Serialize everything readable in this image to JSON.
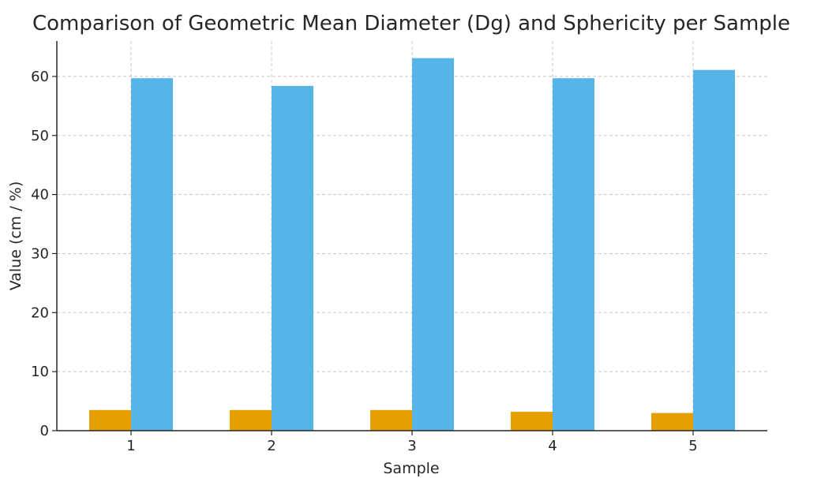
{
  "chart_data": {
    "type": "bar",
    "title": "Comparison of Geometric Mean Diameter (Dg) and Sphericity per Sample",
    "xlabel": "Sample",
    "ylabel": "Value (cm / %)",
    "categories": [
      "1",
      "2",
      "3",
      "4",
      "5"
    ],
    "series": [
      {
        "color": "#E69F00",
        "values": [
          3.5,
          3.5,
          3.5,
          3.2,
          3.0
        ]
      },
      {
        "color": "#56B4E9",
        "values": [
          59.7,
          58.4,
          63.1,
          59.7,
          61.1
        ]
      }
    ],
    "ylim": [
      0,
      66
    ],
    "yticks": [
      "0",
      "10",
      "20",
      "30",
      "40",
      "50",
      "60"
    ],
    "grid": true
  }
}
